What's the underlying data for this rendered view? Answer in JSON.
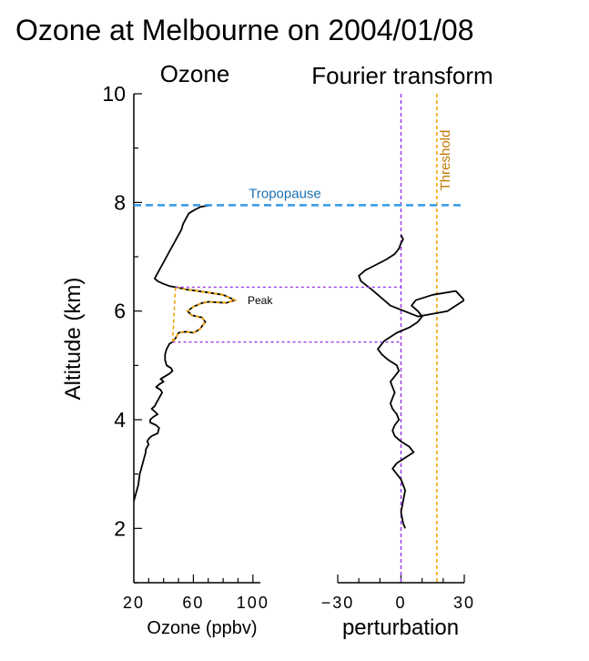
{
  "title": "Ozone at Melbourne on 2004/01/08",
  "colors": {
    "profile": "#000000",
    "tropopause": "#3399e6",
    "tropopause_label": "#1a6fb0",
    "threshold": "#f0a000",
    "threshold_label": "#c07800",
    "bounds": "#9a3ce6",
    "peak_fit": "#f0a000"
  },
  "chart_data": [
    {
      "type": "line",
      "panel_title": "Ozone",
      "xlabel": "Ozone (ppbv)",
      "ylabel": "Altitude (km)",
      "xlim": [
        20,
        105
      ],
      "ylim": [
        1,
        10
      ],
      "x_ticks": [
        20,
        60,
        100
      ],
      "x_tick_labels": [
        "20",
        "60",
        "100"
      ],
      "y_ticks": [
        2,
        4,
        6,
        8,
        10
      ],
      "y_tick_labels": [
        "2",
        "4",
        "6",
        "8",
        "10"
      ],
      "series": [
        {
          "name": "",
          "x": [
            20,
            21,
            23,
            24,
            26,
            27,
            28,
            28,
            29,
            30,
            29,
            30,
            32,
            36,
            37,
            35,
            31,
            31,
            33,
            36,
            34,
            32,
            34,
            35,
            37,
            39,
            38,
            35,
            37,
            40,
            38,
            41,
            44,
            46,
            45,
            42,
            41,
            41,
            42,
            44,
            46,
            48,
            50,
            55,
            60,
            64,
            68,
            66,
            59,
            56,
            60,
            66,
            70,
            82,
            88,
            80,
            68,
            55,
            48,
            44,
            40,
            36,
            34,
            37,
            40,
            42,
            44,
            46,
            48,
            50,
            52,
            53,
            55,
            57,
            60,
            62,
            65,
            72
          ],
          "y": [
            2.5,
            2.6,
            2.8,
            3.0,
            3.2,
            3.3,
            3.4,
            3.45,
            3.5,
            3.55,
            3.6,
            3.65,
            3.7,
            3.75,
            3.85,
            3.9,
            3.95,
            4.0,
            4.05,
            4.1,
            4.15,
            4.2,
            4.25,
            4.3,
            4.4,
            4.5,
            4.55,
            4.6,
            4.65,
            4.7,
            4.75,
            4.8,
            4.85,
            4.9,
            4.95,
            5.0,
            5.1,
            5.2,
            5.3,
            5.4,
            5.43,
            5.5,
            5.6,
            5.62,
            5.6,
            5.66,
            5.8,
            5.88,
            5.92,
            6.0,
            6.08,
            6.15,
            6.17,
            6.15,
            6.2,
            6.3,
            6.35,
            6.4,
            6.44,
            6.46,
            6.5,
            6.55,
            6.6,
            6.75,
            6.9,
            7.0,
            7.1,
            7.2,
            7.3,
            7.4,
            7.5,
            7.6,
            7.7,
            7.8,
            7.85,
            7.88,
            7.92,
            7.95
          ]
        }
      ],
      "tropopause_km": 7.95,
      "tropopause_label": "Tropopause",
      "peak_label": "Peak",
      "peak_bounds_km": [
        5.43,
        6.44
      ]
    },
    {
      "type": "line",
      "panel_title": "Fourier transform",
      "xlabel": "perturbation",
      "xlim": [
        -30,
        30
      ],
      "ylim": [
        1,
        10
      ],
      "x_ticks": [
        -30,
        0,
        30
      ],
      "x_tick_labels": [
        "−30",
        "0",
        "30"
      ],
      "threshold": 17,
      "threshold_label": "Threshold",
      "zero_line": 0,
      "series": [
        {
          "name": "",
          "x": [
            2,
            1,
            0,
            1,
            2,
            0,
            -2,
            -4,
            -2,
            2,
            6,
            4,
            0,
            -3,
            -4,
            -3,
            -1,
            -2,
            -4,
            -5,
            -4,
            -3,
            -4,
            -5,
            -3,
            -1,
            -2,
            -6,
            -9,
            -11,
            -8,
            -2,
            4,
            8,
            10,
            8,
            5,
            7,
            15,
            26,
            30,
            22,
            8,
            -5,
            -14,
            -19,
            -20,
            -17,
            -12,
            -7,
            -3,
            -1,
            0,
            1,
            0
          ],
          "y": [
            2.0,
            2.1,
            2.3,
            2.5,
            2.7,
            2.9,
            3.0,
            3.1,
            3.2,
            3.3,
            3.4,
            3.5,
            3.6,
            3.7,
            3.8,
            3.9,
            4.0,
            4.1,
            4.2,
            4.3,
            4.4,
            4.5,
            4.6,
            4.7,
            4.8,
            4.9,
            5.0,
            5.1,
            5.2,
            5.3,
            5.45,
            5.6,
            5.7,
            5.8,
            5.9,
            6.0,
            6.1,
            6.2,
            6.3,
            6.37,
            6.2,
            6.0,
            5.9,
            6.1,
            6.4,
            6.55,
            6.65,
            6.75,
            6.85,
            6.95,
            7.05,
            7.15,
            7.25,
            7.32,
            7.4
          ]
        }
      ]
    }
  ]
}
